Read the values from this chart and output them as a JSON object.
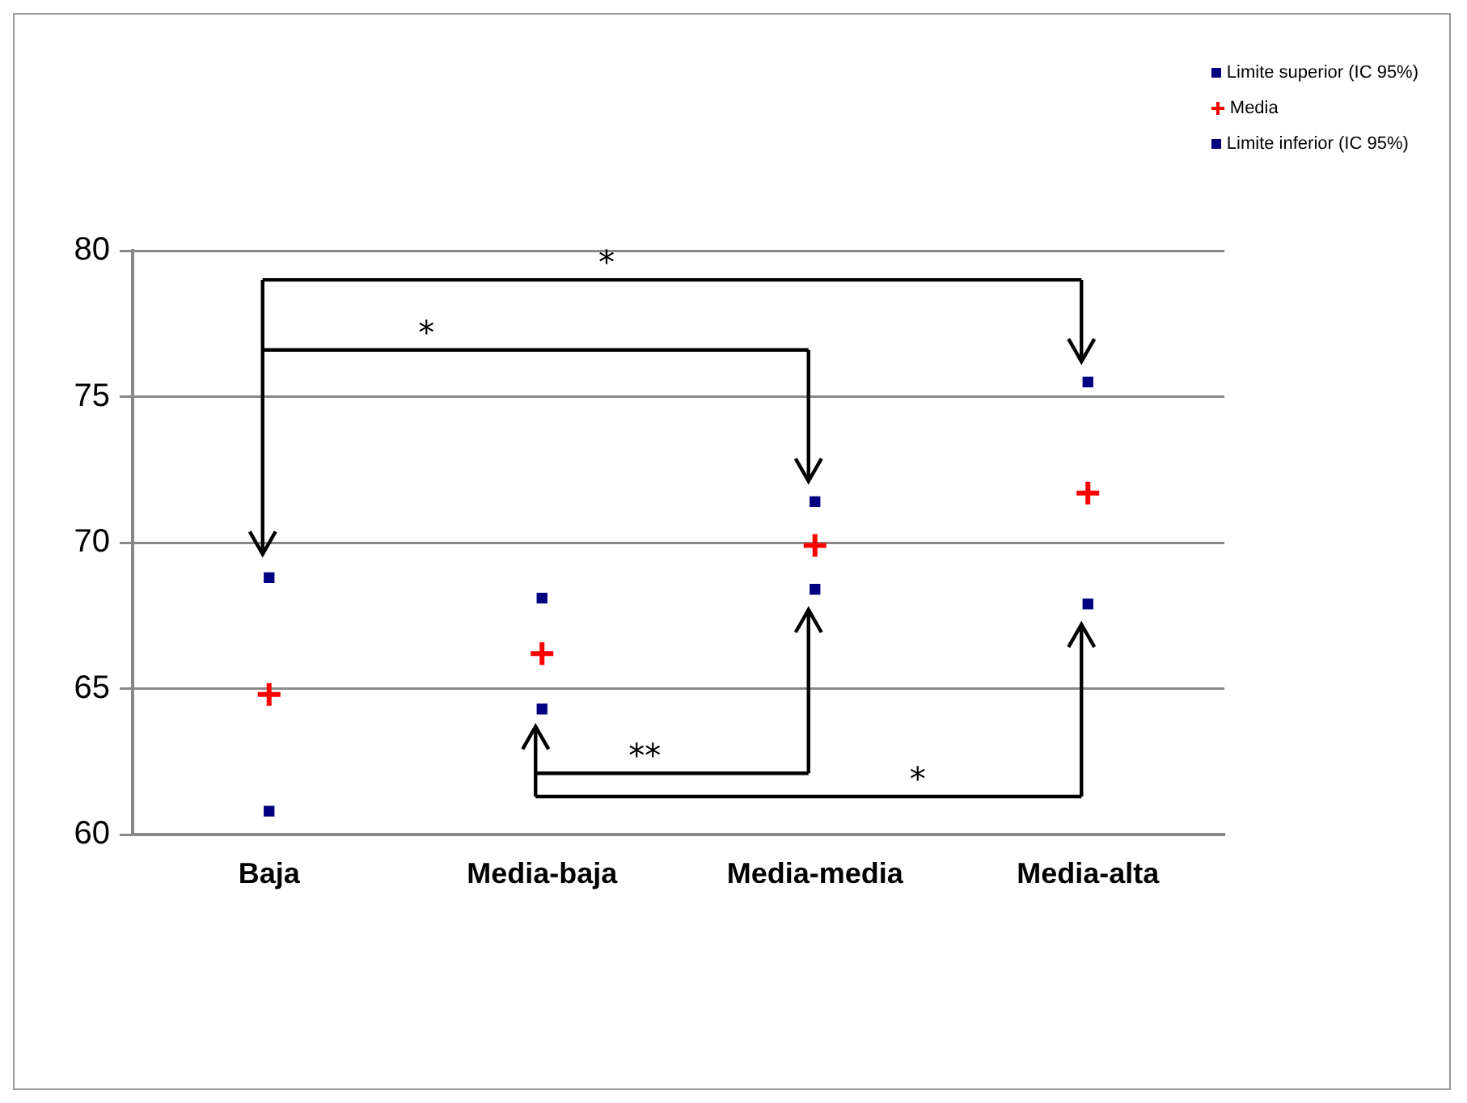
{
  "chart_data": {
    "type": "scatter",
    "categories": [
      "Baja",
      "Media-baja",
      "Media-media",
      "Media-alta"
    ],
    "series": [
      {
        "name": "Limite superior (IC 95%)",
        "color": "#000080",
        "marker": "square",
        "values": [
          68.8,
          68.1,
          71.4,
          75.5
        ]
      },
      {
        "name": "Media",
        "color": "#ff0000",
        "marker": "cross",
        "values": [
          64.8,
          66.2,
          69.9,
          71.7
        ]
      },
      {
        "name": "Limite inferior (IC 95%)",
        "color": "#000080",
        "marker": "square",
        "values": [
          60.8,
          64.3,
          68.4,
          67.9
        ]
      }
    ],
    "ylim": [
      60,
      80
    ],
    "yticks": [
      60,
      65,
      70,
      75,
      80
    ],
    "grid": "y",
    "legend": "top right",
    "annotations": [
      "*",
      "*",
      "**",
      "*"
    ]
  }
}
